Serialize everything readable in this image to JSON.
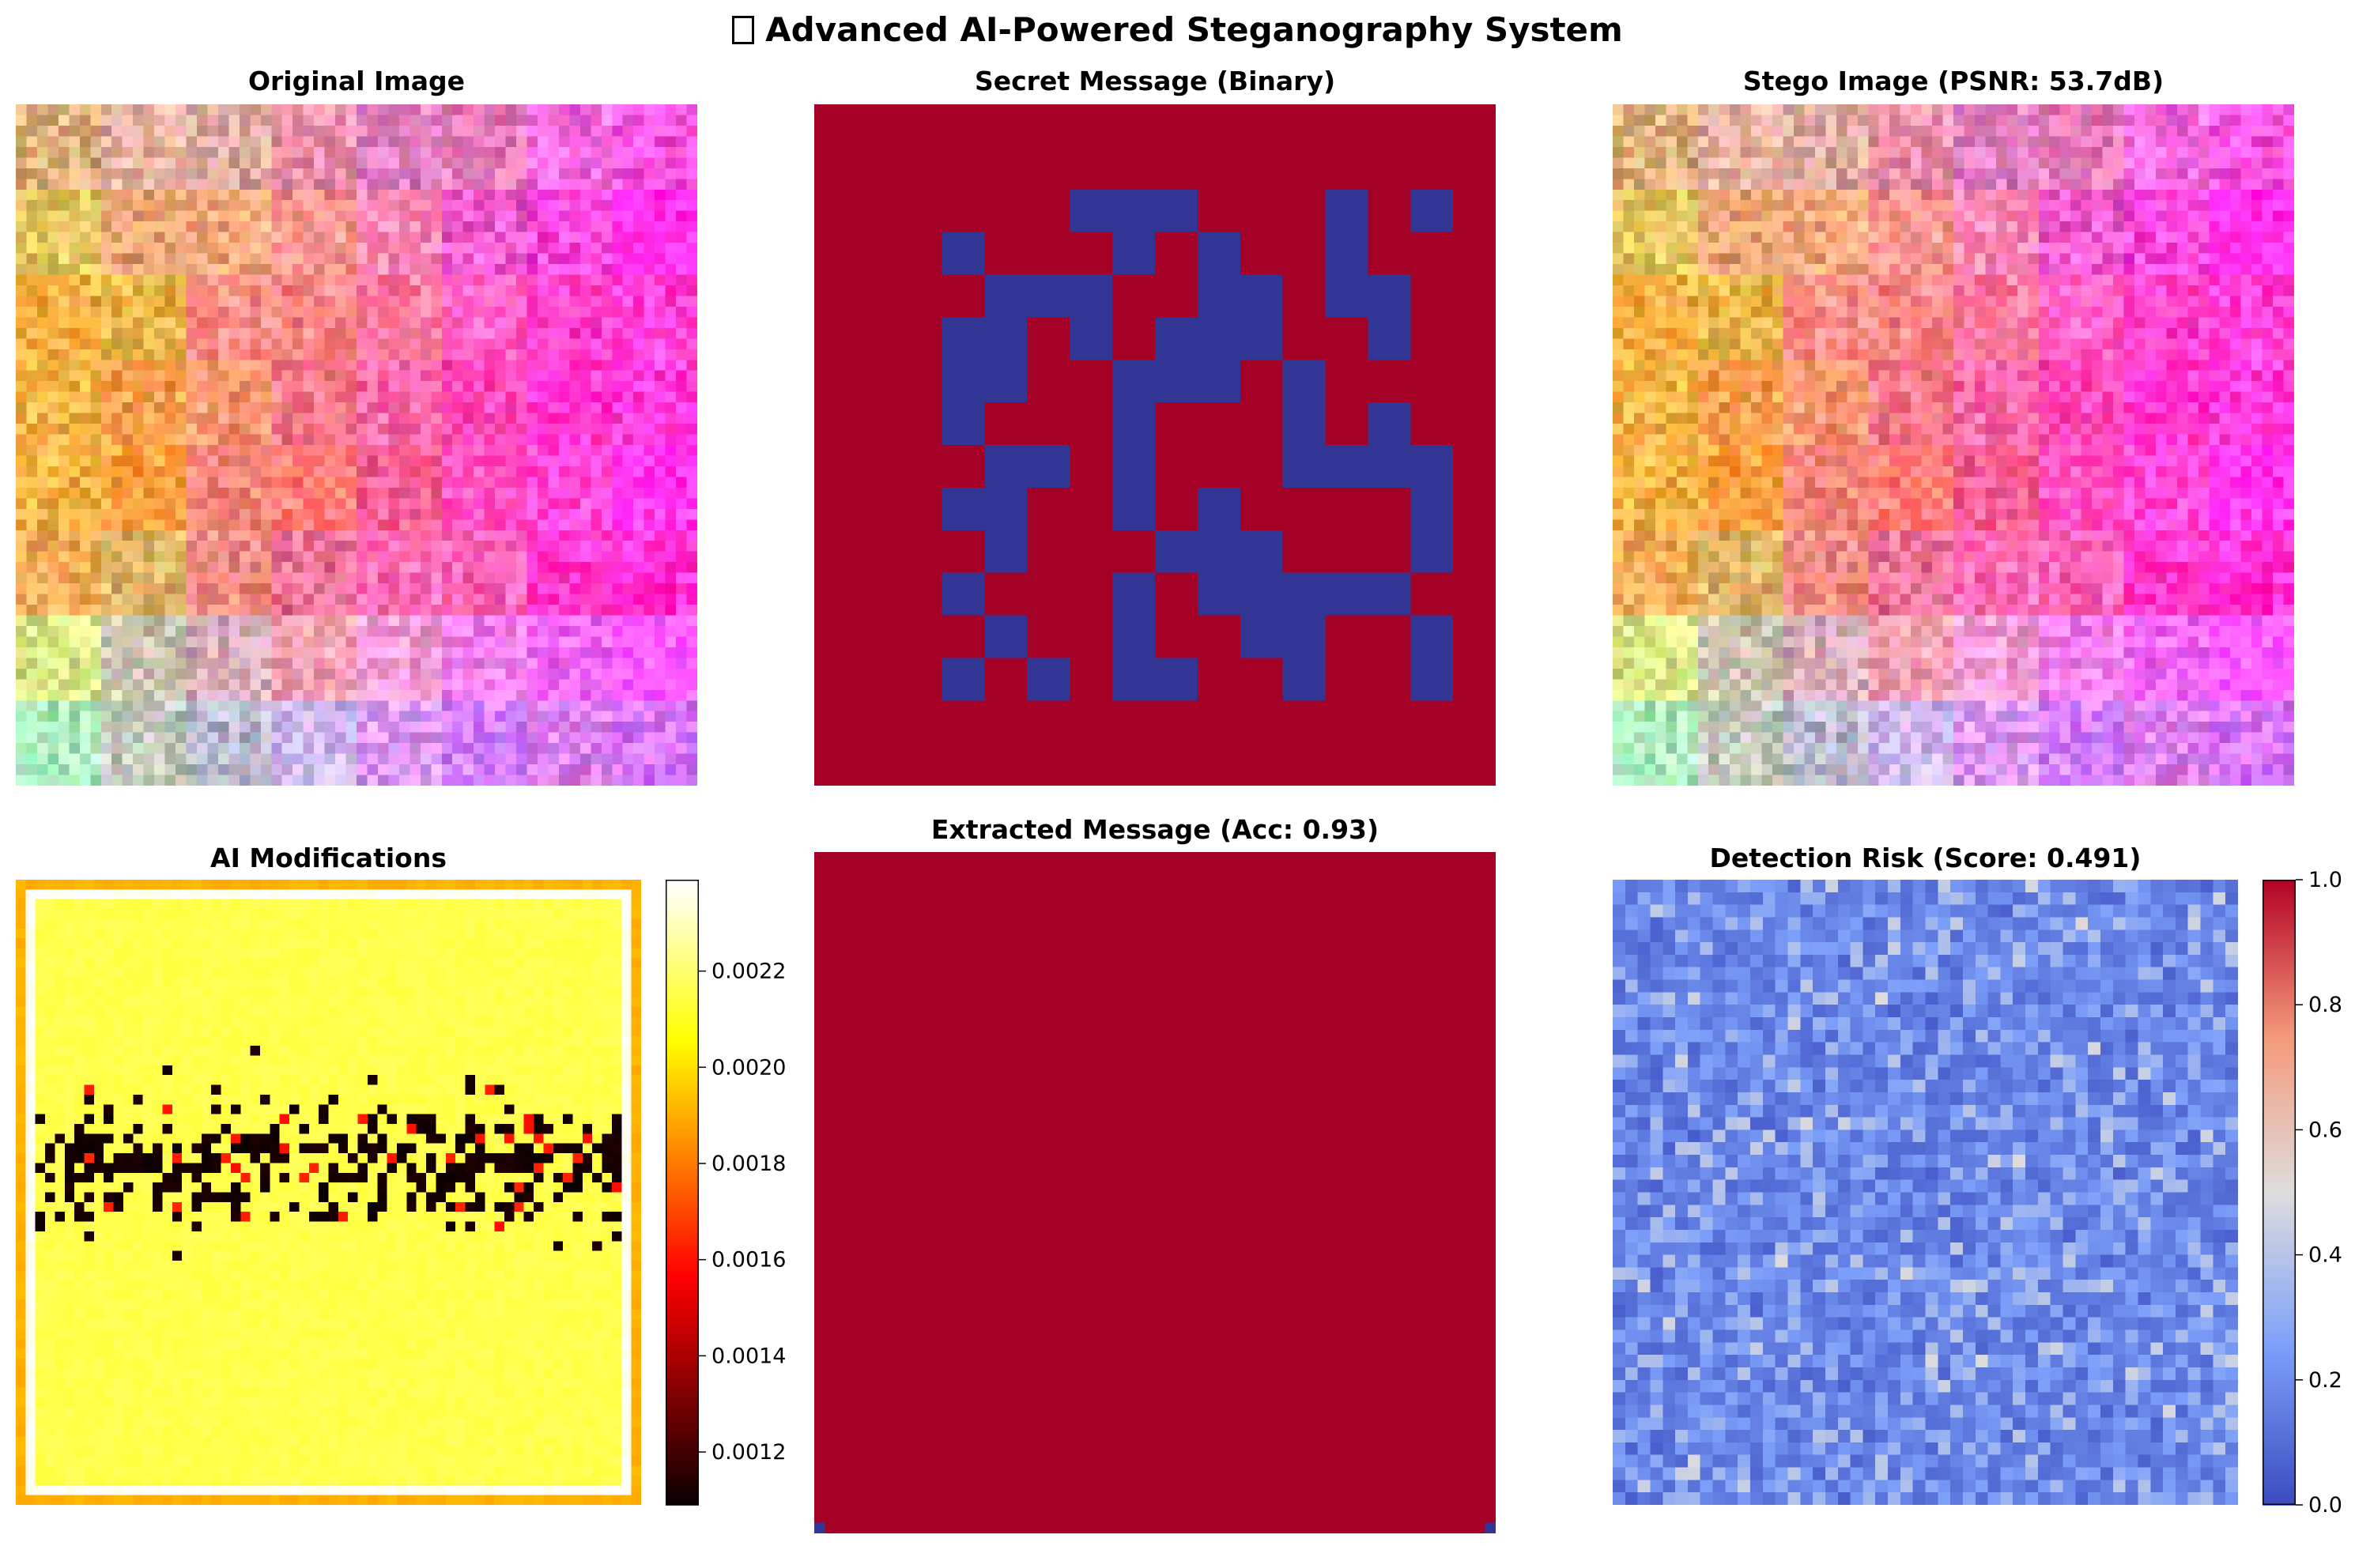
{
  "title": {
    "icon": "lock-icon",
    "text": "Advanced AI-Powered Steganography System"
  },
  "panels": {
    "original": {
      "title": "Original Image"
    },
    "secret": {
      "title": "Secret Message (Binary)"
    },
    "stego": {
      "title": "Stego Image (PSNR: 53.7dB)"
    },
    "modifications": {
      "title": "AI Modifications"
    },
    "extracted": {
      "title": "Extracted Message (Acc: 0.93)"
    },
    "risk": {
      "title": "Detection Risk (Score: 0.491)"
    }
  },
  "colors": {
    "bit_one": "#a50026",
    "bit_zero": "#313695",
    "hot_low": "#0b0000",
    "hot_high": "#ffffff",
    "coolwarm_low": "#3b4cc0",
    "coolwarm_mid": "#dddddd",
    "coolwarm_high": "#b40426"
  },
  "chart_data": [
    {
      "type": "heatmap",
      "name": "original",
      "title": "Original Image",
      "grid": false,
      "note_values": "RGB image with 8x8 block colour pattern plus per-pixel noise"
    },
    {
      "type": "heatmap",
      "name": "secret",
      "title": "Secret Message (Binary)",
      "grid": false,
      "cell_grid": [
        16,
        16
      ],
      "zero_bits": [
        [
          2,
          6
        ],
        [
          2,
          7
        ],
        [
          2,
          8
        ],
        [
          2,
          12
        ],
        [
          2,
          14
        ],
        [
          3,
          3
        ],
        [
          3,
          7
        ],
        [
          3,
          9
        ],
        [
          3,
          12
        ],
        [
          4,
          4
        ],
        [
          4,
          5
        ],
        [
          4,
          6
        ],
        [
          4,
          9
        ],
        [
          4,
          10
        ],
        [
          4,
          12
        ],
        [
          4,
          13
        ],
        [
          5,
          3
        ],
        [
          5,
          4
        ],
        [
          5,
          6
        ],
        [
          5,
          8
        ],
        [
          5,
          9
        ],
        [
          5,
          10
        ],
        [
          5,
          13
        ],
        [
          6,
          3
        ],
        [
          6,
          4
        ],
        [
          6,
          7
        ],
        [
          6,
          8
        ],
        [
          6,
          9
        ],
        [
          6,
          11
        ],
        [
          7,
          3
        ],
        [
          7,
          7
        ],
        [
          7,
          11
        ],
        [
          7,
          13
        ],
        [
          8,
          4
        ],
        [
          8,
          5
        ],
        [
          8,
          7
        ],
        [
          8,
          11
        ],
        [
          8,
          12
        ],
        [
          8,
          13
        ],
        [
          8,
          14
        ],
        [
          9,
          3
        ],
        [
          9,
          4
        ],
        [
          9,
          7
        ],
        [
          9,
          9
        ],
        [
          9,
          14
        ],
        [
          10,
          4
        ],
        [
          10,
          8
        ],
        [
          10,
          9
        ],
        [
          10,
          10
        ],
        [
          10,
          14
        ],
        [
          11,
          3
        ],
        [
          11,
          7
        ],
        [
          11,
          9
        ],
        [
          11,
          10
        ],
        [
          11,
          11
        ],
        [
          11,
          12
        ],
        [
          11,
          13
        ],
        [
          12,
          4
        ],
        [
          12,
          7
        ],
        [
          12,
          10
        ],
        [
          12,
          11
        ],
        [
          12,
          14
        ],
        [
          13,
          3
        ],
        [
          13,
          5
        ],
        [
          13,
          7
        ],
        [
          13,
          8
        ],
        [
          13,
          11
        ],
        [
          13,
          14
        ]
      ]
    },
    {
      "type": "heatmap",
      "name": "stego",
      "title": "Stego Image (PSNR: 53.7dB)",
      "grid": false,
      "psnr_db": 53.7
    },
    {
      "type": "heatmap",
      "name": "modifications",
      "title": "AI Modifications",
      "grid": false,
      "colormap": "hot",
      "colorbar": {
        "range": [
          0.00109,
          0.00239
        ],
        "ticks": [
          "0.0012",
          "0.0014",
          "0.0016",
          "0.0018",
          "0.0020",
          "0.0022"
        ],
        "tick_values": [
          0.0012,
          0.0014,
          0.0016,
          0.0018,
          0.002,
          0.0022
        ]
      }
    },
    {
      "type": "heatmap",
      "name": "extracted",
      "title": "Extracted Message (Acc: 0.93)",
      "grid": false,
      "accuracy": 0.93,
      "cell_grid": [
        64,
        64
      ],
      "zero_bits": [
        [
          63,
          0
        ],
        [
          63,
          63
        ]
      ]
    },
    {
      "type": "heatmap",
      "name": "risk",
      "title": "Detection Risk (Score: 0.491)",
      "grid": false,
      "colormap": "coolwarm",
      "score": 0.491,
      "colorbar": {
        "range": [
          0.0,
          1.0
        ],
        "ticks": [
          "0.0",
          "0.2",
          "0.4",
          "0.6",
          "0.8",
          "1.0"
        ],
        "tick_values": [
          0.0,
          0.2,
          0.4,
          0.6,
          0.8,
          1.0
        ]
      }
    }
  ]
}
